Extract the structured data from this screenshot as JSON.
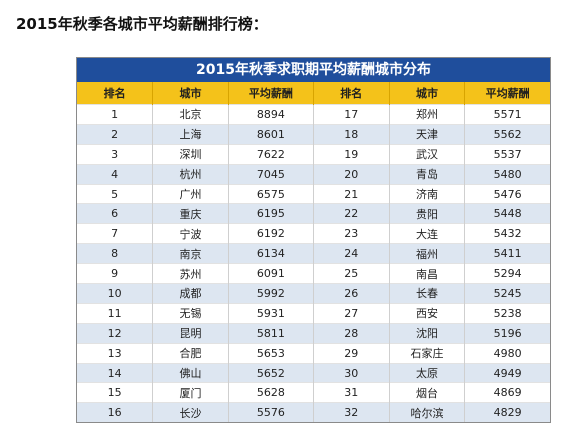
{
  "heading": "2015年秋季各城市平均薪酬排行榜：",
  "table": {
    "title": "2015年秋季求职期平均薪酬城市分布",
    "headers": [
      "排名",
      "城市",
      "平均薪酬",
      "排名",
      "城市",
      "平均薪酬"
    ],
    "rows": [
      [
        "1",
        "北京",
        "8894",
        "17",
        "郑州",
        "5571"
      ],
      [
        "2",
        "上海",
        "8601",
        "18",
        "天津",
        "5562"
      ],
      [
        "3",
        "深圳",
        "7622",
        "19",
        "武汉",
        "5537"
      ],
      [
        "4",
        "杭州",
        "7045",
        "20",
        "青岛",
        "5480"
      ],
      [
        "5",
        "广州",
        "6575",
        "21",
        "济南",
        "5476"
      ],
      [
        "6",
        "重庆",
        "6195",
        "22",
        "贵阳",
        "5448"
      ],
      [
        "7",
        "宁波",
        "6192",
        "23",
        "大连",
        "5432"
      ],
      [
        "8",
        "南京",
        "6134",
        "24",
        "福州",
        "5411"
      ],
      [
        "9",
        "苏州",
        "6091",
        "25",
        "南昌",
        "5294"
      ],
      [
        "10",
        "成都",
        "5992",
        "26",
        "长春",
        "5245"
      ],
      [
        "11",
        "无锡",
        "5931",
        "27",
        "西安",
        "5238"
      ],
      [
        "12",
        "昆明",
        "5811",
        "28",
        "沈阳",
        "5196"
      ],
      [
        "13",
        "合肥",
        "5653",
        "29",
        "石家庄",
        "4980"
      ],
      [
        "14",
        "佛山",
        "5652",
        "30",
        "太原",
        "4949"
      ],
      [
        "15",
        "厦门",
        "5628",
        "31",
        "烟台",
        "4869"
      ],
      [
        "16",
        "长沙",
        "5576",
        "32",
        "哈尔滨",
        "4829"
      ]
    ]
  },
  "colors": {
    "title_bar": "#1f4e9c",
    "header_row": "#f4c21a",
    "alt_row": "#dde6f1"
  }
}
